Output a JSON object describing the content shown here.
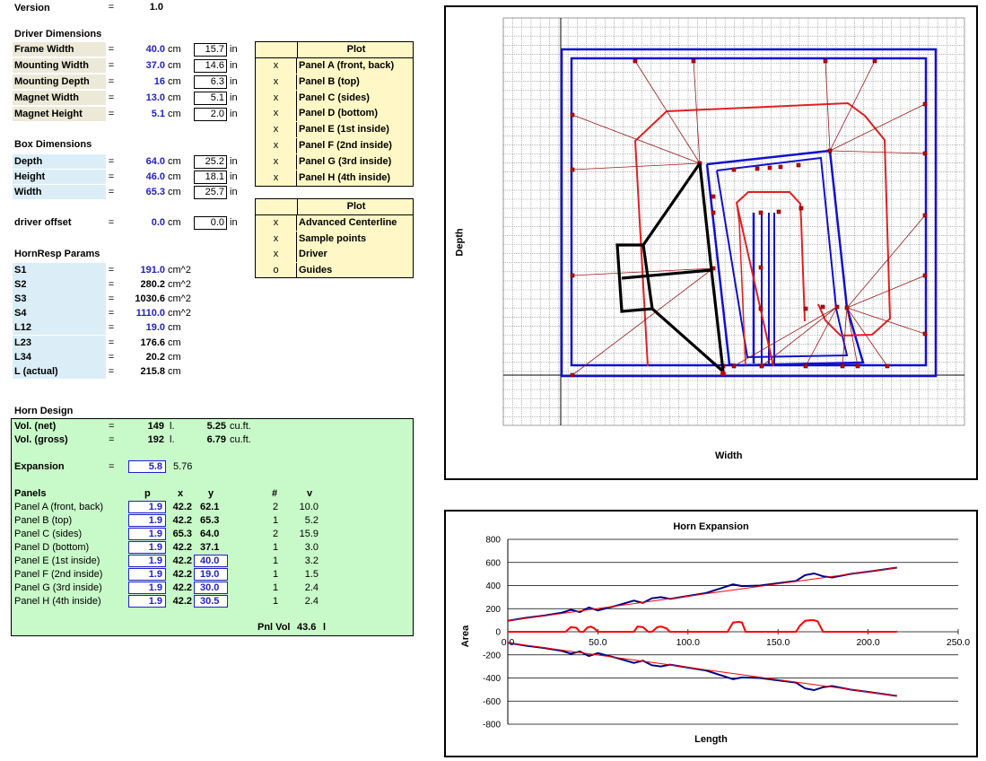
{
  "version": {
    "label": "Version",
    "eq": "=",
    "value": "1.0"
  },
  "driver": {
    "title": "Driver Dimensions",
    "rows": [
      {
        "label": "Frame Width",
        "eq": "=",
        "cm": "40.0",
        "cmu": "cm",
        "in": "15.7",
        "inu": "in"
      },
      {
        "label": "Mounting Width",
        "eq": "=",
        "cm": "37.0",
        "cmu": "cm",
        "in": "14.6",
        "inu": "in"
      },
      {
        "label": "Mounting Depth",
        "eq": "=",
        "cm": "16",
        "cmu": "cm",
        "in": "6.3",
        "inu": "in"
      },
      {
        "label": "Magnet Width",
        "eq": "=",
        "cm": "13.0",
        "cmu": "cm",
        "in": "5.1",
        "inu": "in"
      },
      {
        "label": "Magnet Height",
        "eq": "=",
        "cm": "5.1",
        "cmu": "cm",
        "in": "2.0",
        "inu": "in"
      }
    ]
  },
  "box": {
    "title": "Box Dimensions",
    "rows": [
      {
        "label": "Depth",
        "eq": "=",
        "cm": "64.0",
        "cmu": "cm",
        "in": "25.2",
        "inu": "in"
      },
      {
        "label": "Height",
        "eq": "=",
        "cm": "46.0",
        "cmu": "cm",
        "in": "18.1",
        "inu": "in"
      },
      {
        "label": "Width",
        "eq": "=",
        "cm": "65.3",
        "cmu": "cm",
        "in": "25.7",
        "inu": "in"
      }
    ],
    "offset": {
      "label": "driver offset",
      "eq": "=",
      "cm": "0.0",
      "cmu": "cm",
      "in": "0.0",
      "inu": "in"
    }
  },
  "hornresp": {
    "title": "HornResp Params",
    "rows": [
      {
        "label": "S1",
        "eq": "=",
        "value": "191.0",
        "unit": "cm^2",
        "input": true
      },
      {
        "label": "S2",
        "eq": "=",
        "value": "280.2",
        "unit": "cm^2",
        "input": false
      },
      {
        "label": "S3",
        "eq": "=",
        "value": "1030.6",
        "unit": "cm^2",
        "input": false
      },
      {
        "label": "S4",
        "eq": "=",
        "value": "1110.0",
        "unit": "cm^2",
        "input": true
      },
      {
        "label": "L12",
        "eq": "=",
        "value": "19.0",
        "unit": "cm",
        "input": true
      },
      {
        "label": "L23",
        "eq": "=",
        "value": "176.6",
        "unit": "cm",
        "input": false
      },
      {
        "label": "L34",
        "eq": "=",
        "value": "20.2",
        "unit": "cm",
        "input": false
      },
      {
        "label": "L (actual)",
        "eq": "=",
        "value": "215.8",
        "unit": "cm",
        "input": false
      }
    ]
  },
  "plot1": {
    "header": "Plot",
    "rows": [
      {
        "mark": "x",
        "name": "Panel A (front, back)"
      },
      {
        "mark": "x",
        "name": "Panel B (top)"
      },
      {
        "mark": "x",
        "name": "Panel C (sides)"
      },
      {
        "mark": "x",
        "name": "Panel D (bottom)"
      },
      {
        "mark": "x",
        "name": "Panel E (1st inside)"
      },
      {
        "mark": "x",
        "name": "Panel F (2nd inside)"
      },
      {
        "mark": "x",
        "name": "Panel G (3rd inside)"
      },
      {
        "mark": "x",
        "name": "Panel H (4th inside)"
      }
    ]
  },
  "plot2": {
    "header": "Plot",
    "rows": [
      {
        "mark": "x",
        "name": "Advanced Centerline"
      },
      {
        "mark": "x",
        "name": "Sample points"
      },
      {
        "mark": "x",
        "name": "Driver"
      },
      {
        "mark": "o",
        "name": "Guides"
      }
    ]
  },
  "horn": {
    "title": "Horn Design",
    "volnet": {
      "label": "Vol. (net)",
      "eq": "=",
      "l": "149",
      "lu": "l.",
      "cuft": "5.25",
      "cuftu": "cu.ft."
    },
    "volgross": {
      "label": "Vol. (gross)",
      "eq": "=",
      "l": "192",
      "lu": "l.",
      "cuft": "6.79",
      "cuftu": "cu.ft."
    },
    "expansion": {
      "label": "Expansion",
      "eq": "=",
      "value": "5.8",
      "calc": "5.76"
    },
    "cols": {
      "panels": "Panels",
      "p": "p",
      "x": "x",
      "y": "y",
      "n": "#",
      "v": "v"
    },
    "panels": [
      {
        "name": "Panel A (front, back)",
        "p": "1.9",
        "x": "42.2",
        "y": "62.1",
        "yinput": false,
        "n": "2",
        "v": "10.0"
      },
      {
        "name": "Panel B (top)",
        "p": "1.9",
        "x": "42.2",
        "y": "65.3",
        "yinput": false,
        "n": "1",
        "v": "5.2"
      },
      {
        "name": "Panel C (sides)",
        "p": "1.9",
        "x": "65.3",
        "y": "64.0",
        "yinput": false,
        "n": "2",
        "v": "15.9"
      },
      {
        "name": "Panel D (bottom)",
        "p": "1.9",
        "x": "42.2",
        "y": "37.1",
        "yinput": false,
        "n": "1",
        "v": "3.0"
      },
      {
        "name": "Panel E (1st inside)",
        "p": "1.9",
        "x": "42.2",
        "y": "40.0",
        "yinput": true,
        "n": "1",
        "v": "3.2"
      },
      {
        "name": "Panel F (2nd inside)",
        "p": "1.9",
        "x": "42.2",
        "y": "19.0",
        "yinput": true,
        "n": "1",
        "v": "1.5"
      },
      {
        "name": "Panel G (3rd inside)",
        "p": "1.9",
        "x": "42.2",
        "y": "30.0",
        "yinput": true,
        "n": "1",
        "v": "2.4"
      },
      {
        "name": "Panel H (4th inside)",
        "p": "1.9",
        "x": "42.2",
        "y": "30.5",
        "yinput": true,
        "n": "1",
        "v": "2.4"
      }
    ],
    "pnlvol": {
      "label": "Pnl Vol",
      "value": "43.6",
      "unit": "l"
    }
  },
  "layout_chart": {
    "xlabel": "Width",
    "ylabel": "Depth",
    "colors": {
      "box": "#1010d0",
      "horn": "#e02020",
      "driver": "#000000",
      "grid": "#000000"
    }
  },
  "chart_data": {
    "type": "line",
    "title": "Horn Expansion",
    "xlabel": "Length",
    "ylabel": "Area",
    "xlim": [
      0,
      250
    ],
    "ylim": [
      -800,
      800
    ],
    "xticks": [
      "0.0",
      "50.0",
      "100.0",
      "150.0",
      "200.0",
      "250.0"
    ],
    "yticks": [
      "800",
      "600",
      "400",
      "200",
      "0",
      "-200",
      "-400",
      "-600",
      "-800"
    ],
    "series": [
      {
        "color": "#000080",
        "x": [
          0,
          10,
          20,
          30,
          35,
          40,
          45,
          50,
          60,
          70,
          75,
          80,
          85,
          90,
          100,
          110,
          120,
          125,
          130,
          140,
          150,
          160,
          165,
          170,
          175,
          180,
          190,
          200,
          216
        ],
        "y": [
          95,
          120,
          140,
          165,
          190,
          170,
          210,
          185,
          225,
          270,
          250,
          290,
          300,
          285,
          310,
          335,
          385,
          410,
          395,
          400,
          420,
          440,
          490,
          505,
          480,
          470,
          500,
          520,
          555
        ]
      },
      {
        "color": "#ff0000",
        "x": [
          0,
          30,
          32,
          35,
          38,
          40,
          42,
          44,
          46,
          48,
          50,
          60,
          70,
          72,
          75,
          78,
          80,
          83,
          85,
          88,
          90,
          100,
          120,
          122,
          125,
          128,
          130,
          132,
          135,
          150,
          160,
          162,
          165,
          168,
          170,
          172,
          175,
          180,
          216
        ],
        "y": [
          0,
          0,
          0,
          40,
          35,
          0,
          0,
          35,
          45,
          30,
          0,
          0,
          0,
          45,
          40,
          0,
          0,
          40,
          45,
          30,
          0,
          0,
          0,
          0,
          80,
          85,
          80,
          0,
          0,
          0,
          0,
          50,
          95,
          100,
          100,
          90,
          0,
          0,
          0
        ]
      },
      {
        "color": "#ff0000",
        "x": [
          0,
          216
        ],
        "y": [
          95,
          555
        ]
      },
      {
        "color": "#000080",
        "x": [
          0,
          10,
          20,
          30,
          35,
          40,
          45,
          50,
          60,
          70,
          75,
          80,
          85,
          90,
          100,
          110,
          120,
          125,
          130,
          140,
          150,
          160,
          165,
          170,
          175,
          180,
          190,
          200,
          216
        ],
        "y": [
          -95,
          -120,
          -140,
          -165,
          -190,
          -170,
          -210,
          -185,
          -225,
          -270,
          -250,
          -290,
          -300,
          -285,
          -310,
          -335,
          -385,
          -410,
          -395,
          -400,
          -420,
          -440,
          -490,
          -505,
          -480,
          -470,
          -500,
          -520,
          -555
        ]
      },
      {
        "color": "#ff0000",
        "x": [
          0,
          216
        ],
        "y": [
          -95,
          -555
        ]
      }
    ]
  }
}
